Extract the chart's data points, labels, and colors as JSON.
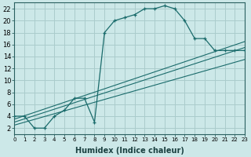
{
  "bg_color": "#cce8e8",
  "grid_color": "#aacccc",
  "line_color": "#1a6b6b",
  "xlabel": "Humidex (Indice chaleur)",
  "xlim": [
    0,
    23
  ],
  "ylim": [
    1,
    23
  ],
  "yticks": [
    2,
    4,
    6,
    8,
    10,
    12,
    14,
    16,
    18,
    20,
    22
  ],
  "xticks": [
    0,
    1,
    2,
    3,
    4,
    5,
    6,
    7,
    8,
    9,
    10,
    11,
    12,
    13,
    14,
    15,
    16,
    17,
    18,
    19,
    20,
    21,
    22,
    23
  ],
  "xtick_labels": [
    "0",
    "1",
    "2",
    "3",
    "4",
    "5",
    "6",
    "7",
    "8",
    "9",
    "10",
    "11",
    "12",
    "13",
    "14",
    "15",
    "16",
    "17",
    "18",
    "19",
    "20",
    "21",
    "22",
    "23"
  ],
  "curve_x": [
    0,
    1,
    2,
    3,
    4,
    5,
    6,
    7,
    8,
    9,
    10,
    11,
    12,
    13,
    14,
    15,
    16,
    17,
    18,
    19,
    20,
    21,
    22,
    23
  ],
  "curve_y": [
    4,
    4,
    2,
    2,
    4,
    5,
    7,
    7,
    3,
    18,
    20,
    20.5,
    21,
    22,
    22,
    22.5,
    22,
    20,
    17,
    17,
    15,
    15,
    15,
    15
  ],
  "line1_x": [
    0,
    23
  ],
  "line1_y": [
    3.5,
    16.5
  ],
  "line2_x": [
    0,
    23
  ],
  "line2_y": [
    3.0,
    15.5
  ],
  "line3_x": [
    0,
    23
  ],
  "line3_y": [
    2.5,
    13.5
  ],
  "xlabel_fontsize": 7,
  "ytick_fontsize": 6,
  "xtick_fontsize": 5
}
